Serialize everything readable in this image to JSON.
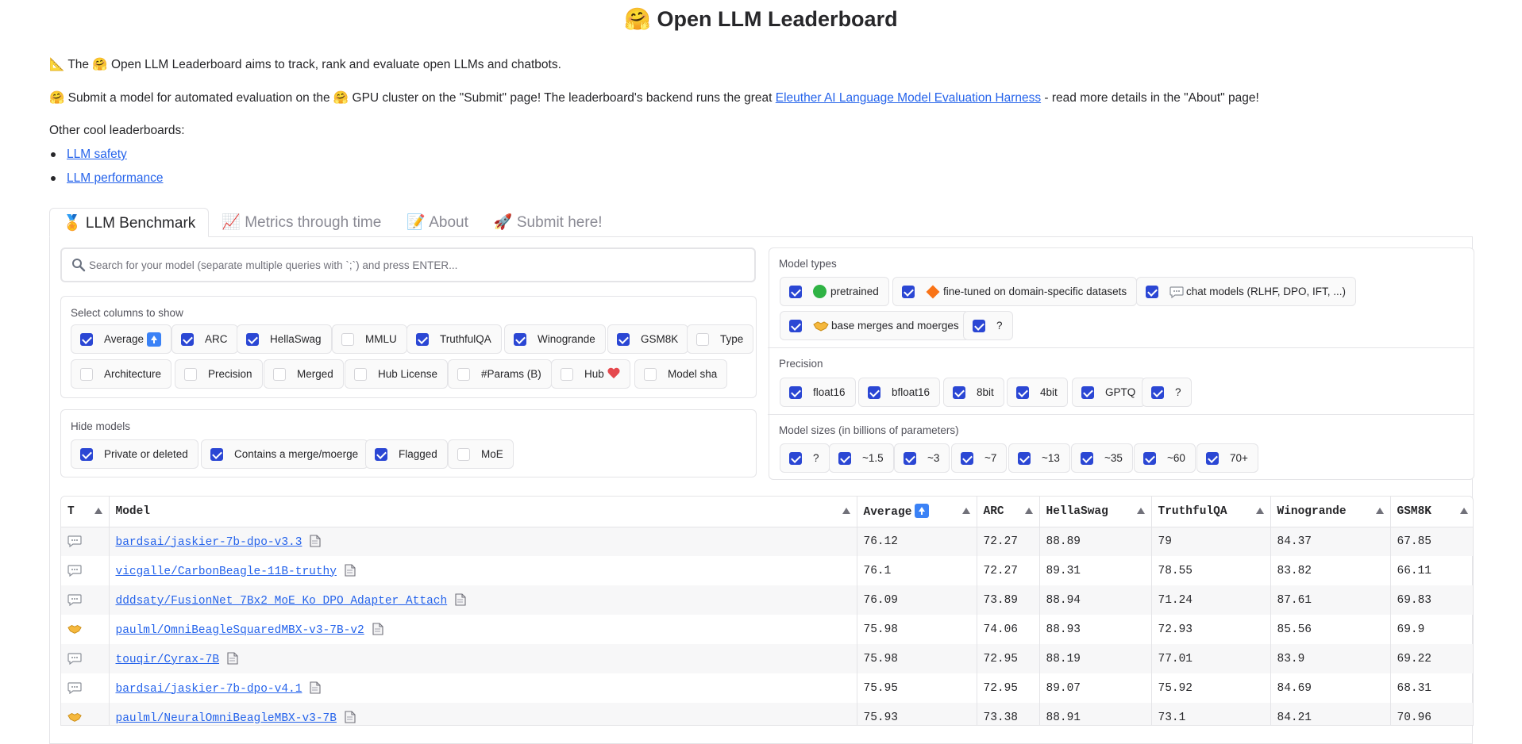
{
  "title": "🤗 Open LLM Leaderboard",
  "intro": {
    "line1": "📐 The 🤗 Open LLM Leaderboard aims to track, rank and evaluate open LLMs and chatbots.",
    "line2_prefix": "🤗 Submit a model for automated evaluation on the 🤗 GPU cluster on the \"Submit\" page! The leaderboard's backend runs the great ",
    "line2_link": "Eleuther AI Language Model Evaluation Harness",
    "line2_suffix": " - read more details in the \"About\" page!",
    "other_label": "Other cool leaderboards:",
    "links": [
      "LLM safety",
      "LLM performance"
    ]
  },
  "tabs": [
    "🏅 LLM Benchmark",
    "📈 Metrics through time",
    "📝 About",
    "🚀 Submit here!"
  ],
  "search": {
    "placeholder": "Search for your model (separate multiple queries with `;`) and press ENTER..."
  },
  "columns_box": {
    "label": "Select columns to show",
    "items": [
      {
        "label": "Average",
        "checked": true
      },
      {
        "label": "ARC",
        "checked": true
      },
      {
        "label": "HellaSwag",
        "checked": true
      },
      {
        "label": "MMLU",
        "checked": false
      },
      {
        "label": "TruthfulQA",
        "checked": true
      },
      {
        "label": "Winogrande",
        "checked": true
      },
      {
        "label": "GSM8K",
        "checked": true
      },
      {
        "label": "Type",
        "checked": false
      },
      {
        "label": "Architecture",
        "checked": false
      },
      {
        "label": "Precision",
        "checked": false
      },
      {
        "label": "Merged",
        "checked": false
      },
      {
        "label": "Hub License",
        "checked": false
      },
      {
        "label": "#Params (B)",
        "checked": false
      },
      {
        "label": "Hub",
        "checked": false
      },
      {
        "label": "Model sha",
        "checked": false
      }
    ]
  },
  "hide_box": {
    "label": "Hide models",
    "items": [
      {
        "label": "Private or deleted",
        "checked": true
      },
      {
        "label": "Contains a merge/moerge",
        "checked": true
      },
      {
        "label": "Flagged",
        "checked": true
      },
      {
        "label": "MoE",
        "checked": false
      }
    ]
  },
  "model_types": {
    "label": "Model types",
    "items": [
      {
        "label": "pretrained",
        "checked": true
      },
      {
        "label": "fine-tuned on domain-specific datasets",
        "checked": true
      },
      {
        "label": "chat models (RLHF, DPO, IFT, ...)",
        "checked": true
      },
      {
        "label": "base merges and moerges",
        "checked": true
      },
      {
        "label": "?",
        "checked": true
      }
    ]
  },
  "precision": {
    "label": "Precision",
    "items": [
      {
        "label": "float16",
        "checked": true
      },
      {
        "label": "bfloat16",
        "checked": true
      },
      {
        "label": "8bit",
        "checked": true
      },
      {
        "label": "4bit",
        "checked": true
      },
      {
        "label": "GPTQ",
        "checked": true
      },
      {
        "label": "?",
        "checked": true
      }
    ]
  },
  "sizes": {
    "label": "Model sizes (in billions of parameters)",
    "items": [
      {
        "label": "?",
        "checked": true
      },
      {
        "label": "~1.5",
        "checked": true
      },
      {
        "label": "~3",
        "checked": true
      },
      {
        "label": "~7",
        "checked": true
      },
      {
        "label": "~13",
        "checked": true
      },
      {
        "label": "~35",
        "checked": true
      },
      {
        "label": "~60",
        "checked": true
      },
      {
        "label": "70+",
        "checked": true
      }
    ]
  },
  "table": {
    "headers": [
      "T",
      "Model",
      "Average",
      "ARC",
      "HellaSwag",
      "TruthfulQA",
      "Winogrande",
      "GSM8K"
    ],
    "rows": [
      {
        "type": "chat",
        "model": "bardsai/jaskier-7b-dpo-v3.3",
        "average": "76.12",
        "arc": "72.27",
        "hellaswag": "88.89",
        "truthfulqa": "79",
        "winogrande": "84.37",
        "gsm8k": "67.85"
      },
      {
        "type": "chat",
        "model": "vicgalle/CarbonBeagle-11B-truthy",
        "average": "76.1",
        "arc": "72.27",
        "hellaswag": "89.31",
        "truthfulqa": "78.55",
        "winogrande": "83.82",
        "gsm8k": "66.11"
      },
      {
        "type": "chat",
        "model": "dddsaty/FusionNet_7Bx2_MoE_Ko_DPO_Adapter_Attach",
        "average": "76.09",
        "arc": "73.89",
        "hellaswag": "88.94",
        "truthfulqa": "71.24",
        "winogrande": "87.61",
        "gsm8k": "69.83"
      },
      {
        "type": "merge",
        "model": "paulml/OmniBeagleSquaredMBX-v3-7B-v2",
        "average": "75.98",
        "arc": "74.06",
        "hellaswag": "88.93",
        "truthfulqa": "72.93",
        "winogrande": "85.56",
        "gsm8k": "69.9"
      },
      {
        "type": "chat",
        "model": "touqir/Cyrax-7B",
        "average": "75.98",
        "arc": "72.95",
        "hellaswag": "88.19",
        "truthfulqa": "77.01",
        "winogrande": "83.9",
        "gsm8k": "69.22"
      },
      {
        "type": "chat",
        "model": "bardsai/jaskier-7b-dpo-v4.1",
        "average": "75.95",
        "arc": "72.95",
        "hellaswag": "89.07",
        "truthfulqa": "75.92",
        "winogrande": "84.69",
        "gsm8k": "68.31"
      },
      {
        "type": "merge",
        "model": "paulml/NeuralOmniBeagleMBX-v3-7B",
        "average": "75.93",
        "arc": "73.38",
        "hellaswag": "88.91",
        "truthfulqa": "73.1",
        "winogrande": "84.21",
        "gsm8k": "70.96"
      }
    ]
  },
  "colors": {
    "accent": "#2b47d4",
    "link": "#2563eb",
    "border": "#e4e4e7"
  }
}
